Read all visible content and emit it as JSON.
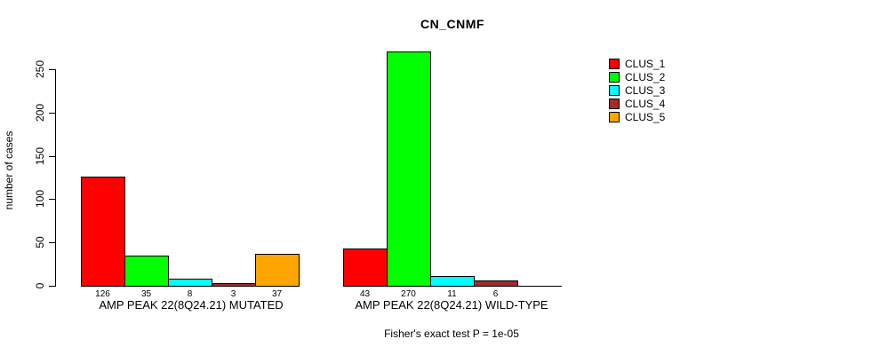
{
  "chart_data": {
    "type": "bar",
    "title": "CN_CNMF",
    "ylabel": "number of cases",
    "xlabel": "",
    "ylim": [
      0,
      270
    ],
    "yticks": [
      0,
      50,
      100,
      150,
      200,
      250
    ],
    "grid": false,
    "legend_position": "right",
    "categories": [
      "AMP PEAK 22(8Q24.21) MUTATED",
      "AMP PEAK 22(8Q24.21) WILD-TYPE"
    ],
    "series": [
      {
        "name": "CLUS_1",
        "color": "#FF0000",
        "values": [
          126,
          43
        ]
      },
      {
        "name": "CLUS_2",
        "color": "#00FF00",
        "values": [
          35,
          270
        ]
      },
      {
        "name": "CLUS_3",
        "color": "#00FFFF",
        "values": [
          8,
          11
        ]
      },
      {
        "name": "CLUS_4",
        "color": "#A52A2A",
        "values": [
          3,
          6
        ]
      },
      {
        "name": "CLUS_5",
        "color": "#FFA500",
        "values": [
          37,
          0
        ]
      }
    ],
    "bar_value_labels": {
      "mutated": [
        "126",
        "35",
        "8",
        "3",
        "37"
      ],
      "wild_type": [
        "43",
        "270",
        "11",
        "6",
        ""
      ]
    },
    "footnote": "Fisher's exact test P = 1e-05"
  }
}
